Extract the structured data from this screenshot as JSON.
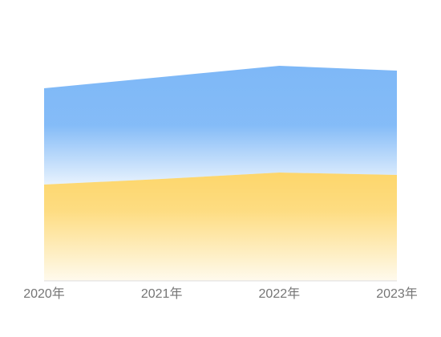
{
  "chart_data": {
    "type": "stacked-area",
    "categories": [
      "2020年",
      "2021年",
      "2022年",
      "2023年"
    ],
    "series": [
      {
        "color": "#fdd66b",
        "values": [
          120,
          127,
          135,
          132
        ]
      },
      {
        "color": "#7eb8f7",
        "values": [
          120,
          127,
          133,
          130
        ]
      }
    ],
    "ylim": [
      0,
      300
    ]
  }
}
